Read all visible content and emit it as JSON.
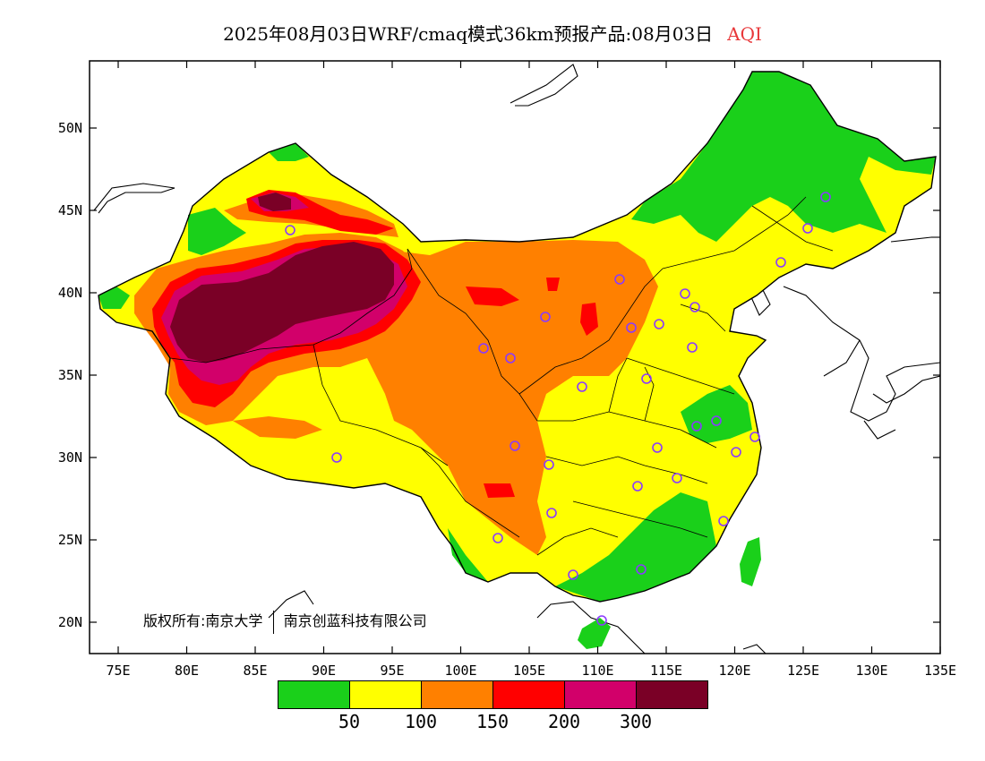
{
  "title": {
    "main": "2025年08月03日WRF/cmaq模式36km预报产品:08月03日",
    "variable": "AQI"
  },
  "axes": {
    "y_labels": [
      "50N",
      "45N",
      "40N",
      "35N",
      "30N",
      "25N",
      "20N"
    ],
    "x_labels": [
      "75E",
      "80E",
      "85E",
      "90E",
      "95E",
      "100E",
      "105E",
      "110E",
      "115E",
      "120E",
      "125E",
      "130E",
      "135E"
    ]
  },
  "copyright": {
    "left": "版权所有:南京大学",
    "right": "南京创蓝科技有限公司"
  },
  "legend": {
    "colors": [
      "#1ad01a",
      "#ffff00",
      "#ff8000",
      "#ff0000",
      "#d2006a",
      "#7a0026"
    ],
    "labels": [
      "50",
      "100",
      "150",
      "200",
      "300"
    ]
  },
  "stations": {
    "count": 31,
    "marker_color": "#8a3aff",
    "icon": "circle-station-marker"
  }
}
